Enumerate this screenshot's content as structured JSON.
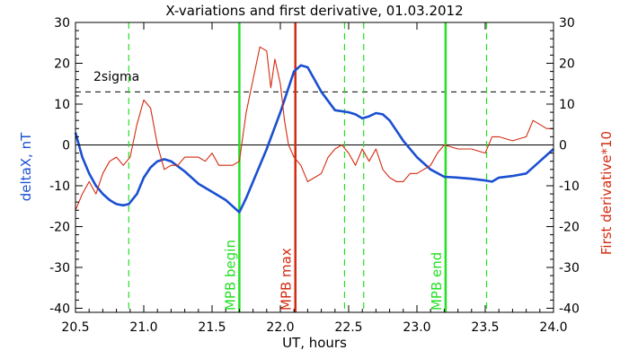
{
  "chart_data": {
    "type": "line",
    "title": "X-variations and first derivative, 01.03.2012",
    "xlabel": "UT, hours",
    "ylabel_left": "deltaX, nT",
    "ylabel_right": "First derivative*10",
    "xlim": [
      20.5,
      24.0
    ],
    "ylim": [
      -41,
      30
    ],
    "x_ticks": [
      "20.5",
      "21.0",
      "21.5",
      "22.0",
      "22.5",
      "23.0",
      "23.5",
      "24.0"
    ],
    "y_ticks_left": [
      "30",
      "20",
      "10",
      "0",
      "-10",
      "-20",
      "-30",
      "-40"
    ],
    "y_ticks_right": [
      "30",
      "20",
      "10",
      "0",
      "-10",
      "-20",
      "-30",
      "-40"
    ],
    "colors": {
      "deltaX": "#1a4fd1",
      "derivative": "#d42a10",
      "mpb_marker": "#22e022",
      "mpb_max": "#d42a10",
      "threshold": "#000000"
    },
    "threshold": {
      "label": "2sigma",
      "y": 13
    },
    "zero_line": 0,
    "dashed_verticals": [
      20.89,
      21.7,
      22.47,
      22.61,
      23.21,
      23.51
    ],
    "markers": [
      {
        "x": 21.7,
        "label": "MPB begin",
        "color": "#22e022"
      },
      {
        "x": 22.11,
        "label": "MPB max",
        "color": "#d42a10"
      },
      {
        "x": 23.21,
        "label": "MPB end",
        "color": "#22e022"
      }
    ],
    "series": [
      {
        "key": "deltaX",
        "x": [
          20.5,
          20.55,
          20.6,
          20.65,
          20.7,
          20.75,
          20.8,
          20.85,
          20.89,
          20.95,
          21.0,
          21.05,
          21.1,
          21.15,
          21.2,
          21.3,
          21.4,
          21.5,
          21.6,
          21.65,
          21.7,
          21.75,
          21.8,
          21.9,
          22.0,
          22.05,
          22.1,
          22.15,
          22.2,
          22.3,
          22.4,
          22.5,
          22.55,
          22.6,
          22.65,
          22.7,
          22.75,
          22.8,
          22.9,
          23.0,
          23.1,
          23.2,
          23.3,
          23.4,
          23.5,
          23.55,
          23.6,
          23.7,
          23.8,
          23.9,
          24.0
        ],
        "values": [
          3,
          -3,
          -7,
          -10,
          -12,
          -13.5,
          -14.5,
          -14.8,
          -14.5,
          -12,
          -8,
          -5.5,
          -4,
          -3.5,
          -4,
          -6.5,
          -9.5,
          -11.5,
          -13.5,
          -15,
          -16.5,
          -13,
          -9,
          -1,
          8,
          13,
          18,
          19.5,
          19,
          13,
          8.5,
          8,
          7.5,
          6.5,
          7,
          7.8,
          7.5,
          6,
          1,
          -3,
          -6,
          -7.8,
          -8,
          -8.3,
          -8.7,
          -9,
          -8,
          -7.6,
          -7,
          -4,
          -1
        ]
      },
      {
        "key": "derivative",
        "x": [
          20.5,
          20.55,
          20.6,
          20.65,
          20.7,
          20.75,
          20.8,
          20.85,
          20.9,
          20.95,
          21.0,
          21.05,
          21.1,
          21.15,
          21.2,
          21.25,
          21.3,
          21.35,
          21.4,
          21.45,
          21.5,
          21.55,
          21.6,
          21.65,
          21.7,
          21.75,
          21.8,
          21.85,
          21.9,
          21.93,
          21.96,
          22.0,
          22.03,
          22.06,
          22.1,
          22.15,
          22.2,
          22.25,
          22.3,
          22.35,
          22.4,
          22.45,
          22.5,
          22.55,
          22.6,
          22.65,
          22.7,
          22.75,
          22.8,
          22.85,
          22.9,
          22.95,
          23.0,
          23.05,
          23.1,
          23.15,
          23.2,
          23.3,
          23.4,
          23.5,
          23.55,
          23.6,
          23.7,
          23.8,
          23.85,
          23.9,
          23.95,
          24.0
        ],
        "values": [
          -16,
          -12,
          -9,
          -12,
          -7,
          -4,
          -3,
          -5,
          -3,
          5,
          11,
          9,
          0,
          -6,
          -5,
          -5,
          -3,
          -3,
          -3,
          -4,
          -2,
          -5,
          -5,
          -5,
          -4,
          8,
          16,
          24,
          23,
          14,
          21,
          15,
          6,
          0,
          -3,
          -5,
          -9,
          -8,
          -7,
          -3,
          -1,
          0,
          -2,
          -5,
          -1,
          -4,
          -1,
          -6,
          -8,
          -9,
          -9,
          -7,
          -7,
          -6,
          -5,
          -2,
          0,
          -1,
          -1,
          -2,
          2,
          2,
          1,
          2,
          6,
          5,
          4,
          4
        ]
      }
    ]
  }
}
